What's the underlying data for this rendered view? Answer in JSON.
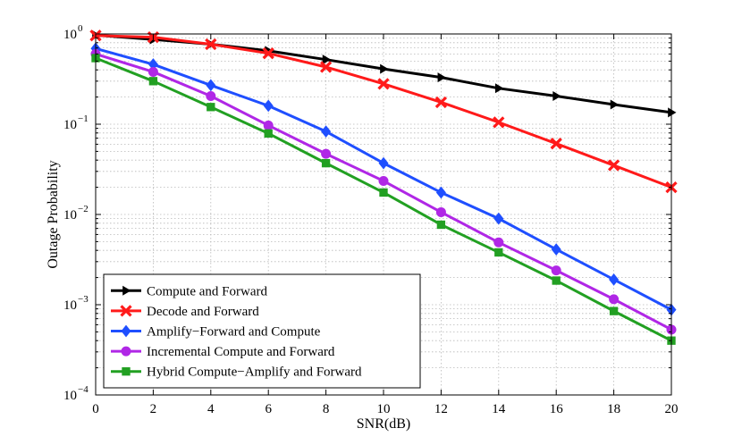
{
  "chart_data": {
    "type": "line",
    "title": "",
    "xlabel": "SNR(dB)",
    "ylabel": "Outage Probability",
    "xlim": [
      0,
      20
    ],
    "ylim": [
      0.0001,
      1
    ],
    "yscale": "log",
    "grid": true,
    "legend_position": "bottom-left",
    "x_ticks": [
      0,
      2,
      4,
      6,
      8,
      10,
      12,
      14,
      16,
      18,
      20
    ],
    "x_tick_labels": [
      "0",
      "2",
      "4",
      "6",
      "8",
      "10",
      "12",
      "14",
      "16",
      "18",
      "20"
    ],
    "y_ticks": [
      {
        "value": 1,
        "base": "10",
        "exp": "0"
      },
      {
        "value": 0.1,
        "base": "10",
        "exp": "−1"
      },
      {
        "value": 0.01,
        "base": "10",
        "exp": "−2"
      },
      {
        "value": 0.001,
        "base": "10",
        "exp": "−3"
      },
      {
        "value": 0.0001,
        "base": "10",
        "exp": "−4"
      }
    ],
    "x": [
      0,
      2,
      4,
      6,
      8,
      10,
      12,
      14,
      16,
      18,
      20
    ],
    "series": [
      {
        "name": "Compute and Forward",
        "color": "#000000",
        "marker": "triangle-right",
        "values": [
          0.97,
          0.87,
          0.77,
          0.65,
          0.52,
          0.41,
          0.33,
          0.25,
          0.205,
          0.165,
          0.135
        ]
      },
      {
        "name": "Decode and Forward",
        "color": "#ff1a1a",
        "marker": "x",
        "values": [
          0.96,
          0.92,
          0.77,
          0.61,
          0.43,
          0.28,
          0.175,
          0.105,
          0.061,
          0.035,
          0.02
        ]
      },
      {
        "name": "Amplify−Forward and Compute",
        "color": "#1f4fff",
        "marker": "diamond",
        "values": [
          0.69,
          0.46,
          0.27,
          0.16,
          0.083,
          0.037,
          0.0175,
          0.009,
          0.0041,
          0.0019,
          0.00088
        ]
      },
      {
        "name": "Incremental Compute and Forward",
        "color": "#b027e6",
        "marker": "circle",
        "values": [
          0.6,
          0.38,
          0.205,
          0.097,
          0.047,
          0.0235,
          0.0106,
          0.0049,
          0.0024,
          0.00115,
          0.00053
        ]
      },
      {
        "name": "Hybrid Compute−Amplify and Forward",
        "color": "#22a022",
        "marker": "square",
        "values": [
          0.54,
          0.3,
          0.155,
          0.079,
          0.037,
          0.0175,
          0.0077,
          0.0038,
          0.00185,
          0.00085,
          0.0004
        ]
      }
    ]
  }
}
